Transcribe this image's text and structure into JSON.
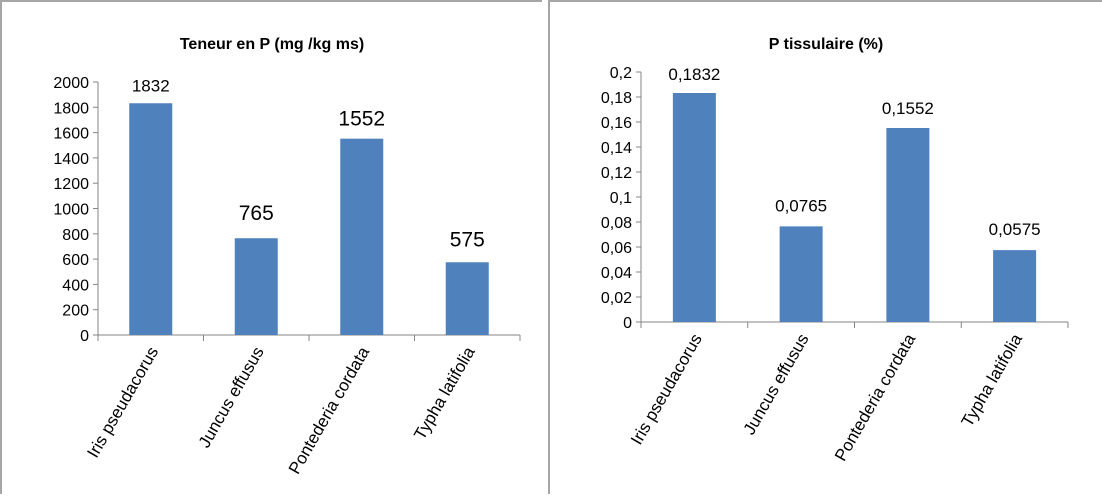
{
  "chart_data": [
    {
      "type": "bar",
      "title": "Teneur en P (mg /kg ms)",
      "categories": [
        "Iris pseudacorus",
        "Juncus effusus",
        "Pontederia cordata",
        "Typha latifolia"
      ],
      "values": [
        1832,
        765,
        1552,
        575
      ],
      "data_labels": [
        "1832",
        "765",
        "1552",
        "575"
      ],
      "yticks": [
        "0",
        "200",
        "400",
        "600",
        "800",
        "1000",
        "1200",
        "1400",
        "1600",
        "1800",
        "2000"
      ],
      "ylim": [
        0,
        2000
      ],
      "xlabel": "",
      "ylabel": "",
      "grid": false,
      "legend": "none",
      "bar_color": "#4f81bd"
    },
    {
      "type": "bar",
      "title": "P tissulaire (%)",
      "categories": [
        "Iris pseudacorus",
        "Juncus effusus",
        "Pontederia cordata",
        "Typha latifolia"
      ],
      "values": [
        0.1832,
        0.0765,
        0.1552,
        0.0575
      ],
      "data_labels": [
        "0,1832",
        "0,0765",
        "0,1552",
        "0,0575"
      ],
      "yticks": [
        "0",
        "0,02",
        "0,04",
        "0,06",
        "0,08",
        "0,1",
        "0,12",
        "0,14",
        "0,16",
        "0,18",
        "0,2"
      ],
      "ylim": [
        0,
        0.2
      ],
      "xlabel": "",
      "ylabel": "",
      "grid": false,
      "legend": "none",
      "bar_color": "#4f81bd"
    }
  ]
}
